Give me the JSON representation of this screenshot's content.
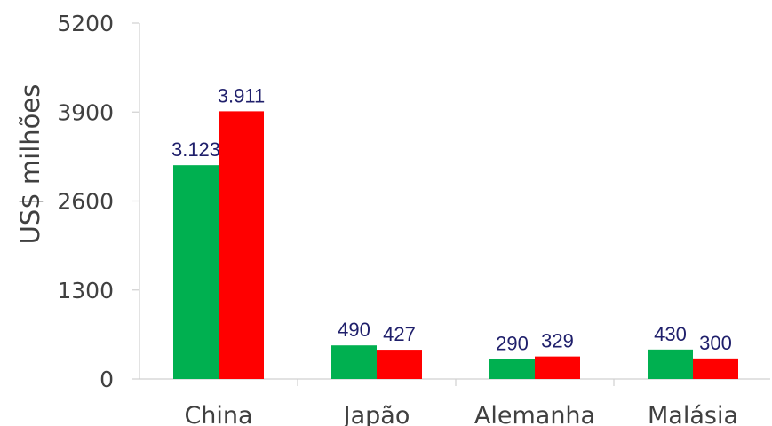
{
  "chart_data": {
    "type": "bar",
    "title": "",
    "xlabel": "",
    "ylabel": "US$ milhões",
    "categories": [
      "China",
      "Japão",
      "Alemanha",
      "Malásia"
    ],
    "series": [
      {
        "color": "#00b050",
        "values": [
          3123,
          490,
          290,
          430
        ],
        "labels": [
          "3.123",
          "490",
          "290",
          "430"
        ]
      },
      {
        "color": "#ff0000",
        "values": [
          3911,
          427,
          329,
          300
        ],
        "labels": [
          "3.911",
          "427",
          "329",
          "300"
        ]
      }
    ],
    "yticks": [
      "0",
      "1300",
      "2600",
      "3900",
      "5200"
    ],
    "ylim": [
      0,
      5200
    ],
    "grid": false,
    "legend": "none"
  }
}
